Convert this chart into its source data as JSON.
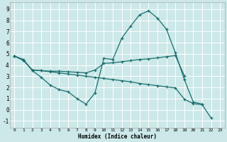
{
  "xlabel": "Humidex (Indice chaleur)",
  "bg_color": "#cce8e8",
  "grid_color": "#ffffff",
  "line_color": "#1a6e6e",
  "xlim": [
    -0.5,
    23.5
  ],
  "ylim": [
    -1.6,
    9.6
  ],
  "xticks": [
    0,
    1,
    2,
    3,
    4,
    5,
    6,
    7,
    8,
    9,
    10,
    11,
    12,
    13,
    14,
    15,
    16,
    17,
    18,
    19,
    20,
    21,
    22,
    23
  ],
  "yticks": [
    -1,
    0,
    1,
    2,
    3,
    4,
    5,
    6,
    7,
    8,
    9
  ],
  "series1_x": [
    0,
    1,
    2,
    3,
    4,
    5,
    6,
    7,
    8,
    9,
    10,
    11,
    12,
    13,
    14,
    15,
    16,
    17,
    18,
    19,
    20,
    21
  ],
  "series1_y": [
    4.8,
    4.5,
    3.5,
    2.9,
    2.2,
    1.8,
    1.6,
    1.0,
    0.5,
    1.5,
    4.6,
    4.5,
    6.4,
    7.5,
    8.5,
    8.85,
    8.2,
    7.2,
    5.1,
    2.7,
    0.7,
    0.5
  ],
  "series2_x": [
    0,
    1,
    2,
    3,
    4,
    5,
    6,
    7,
    8,
    9,
    10,
    11,
    12,
    13,
    14,
    15,
    16,
    17,
    18,
    19
  ],
  "series2_y": [
    4.8,
    4.45,
    3.55,
    3.5,
    3.45,
    3.45,
    3.4,
    3.35,
    3.3,
    3.55,
    4.15,
    4.2,
    4.3,
    4.4,
    4.5,
    4.55,
    4.65,
    4.75,
    4.85,
    3.05
  ],
  "series3_x": [
    0,
    1,
    2,
    3,
    4,
    5,
    6,
    7,
    8,
    9,
    10,
    11,
    12,
    13,
    14,
    15,
    16,
    17,
    18,
    19,
    20,
    21,
    22
  ],
  "series3_y": [
    4.8,
    4.4,
    3.55,
    3.5,
    3.4,
    3.3,
    3.2,
    3.1,
    3.0,
    2.9,
    2.8,
    2.7,
    2.6,
    2.5,
    2.35,
    2.25,
    2.15,
    2.05,
    1.95,
    0.95,
    0.55,
    0.45,
    -0.75
  ]
}
